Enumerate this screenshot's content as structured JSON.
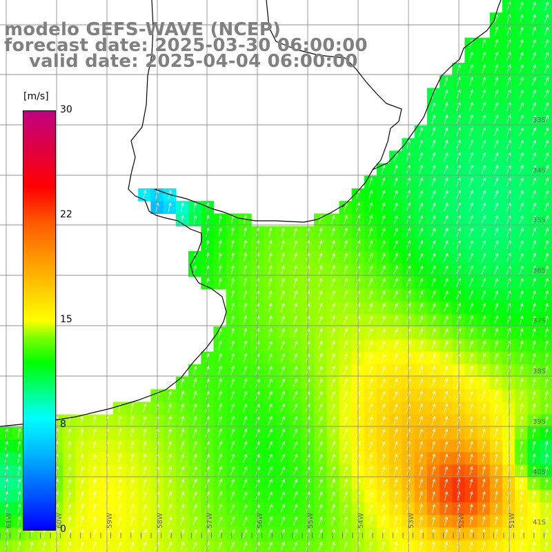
{
  "title": {
    "model": "modelo GEFS-WAVE (NCEP)",
    "forecast": "forecast date: 2025-03-30 06:00:00",
    "valid": "valid date: 2025-04-04 06:00:00"
  },
  "colorbar": {
    "unit": "[m/s]",
    "labels": [
      "30",
      "22",
      "15",
      "8",
      "0"
    ],
    "min": 0,
    "max": 30,
    "stops": [
      {
        "value": 0,
        "color": "#0000ff"
      },
      {
        "value": 5.4,
        "color": "#00b4ff"
      },
      {
        "value": 8,
        "color": "#00ffff"
      },
      {
        "value": 12,
        "color": "#00ff00"
      },
      {
        "value": 15,
        "color": "#ffff00"
      },
      {
        "value": 19,
        "color": "#ffa500"
      },
      {
        "value": 22,
        "color": "#ff5a00"
      },
      {
        "value": 24.6,
        "color": "#ff0000"
      },
      {
        "value": 30,
        "color": "#c00080"
      }
    ]
  },
  "map": {
    "lon_labels": [
      "61W",
      "60W",
      "59W",
      "58W",
      "57W",
      "56W",
      "55W",
      "54W",
      "53W",
      "52W",
      "51W"
    ],
    "lat_labels": [
      "33S",
      "34S",
      "35S",
      "36S",
      "37S",
      "38S",
      "39S",
      "40S",
      "41S"
    ],
    "land_color": "#ffffff",
    "grid_color": "#909090",
    "arrow_color": "#ffffff",
    "wind_direction": "from south-southwest"
  }
}
